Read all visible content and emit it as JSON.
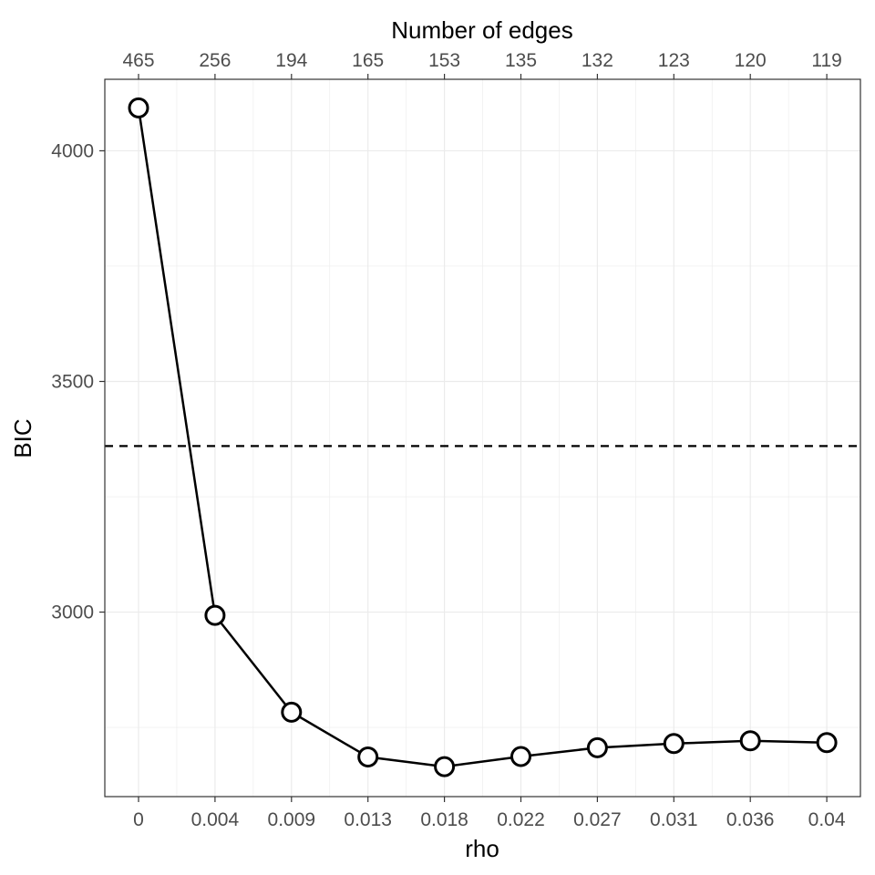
{
  "chart_data": {
    "type": "line",
    "title": "",
    "xlabel": "rho",
    "ylabel": "BIC",
    "x2label": "Number of edges",
    "categories": [
      "0",
      "0.004",
      "0.009",
      "0.013",
      "0.018",
      "0.022",
      "0.027",
      "0.031",
      "0.036",
      "0.04"
    ],
    "top_tick_labels": [
      "465",
      "256",
      "194",
      "165",
      "153",
      "135",
      "132",
      "123",
      "120",
      "119"
    ],
    "series": [
      {
        "values": [
          4093,
          2993,
          2783,
          2686,
          2665,
          2687,
          2706,
          2715,
          2721,
          2717
        ]
      }
    ],
    "y_ticks": [
      3000,
      3500,
      4000
    ],
    "ylim": [
      2600,
      4155
    ],
    "reference_line": {
      "y": 3360,
      "style": "dashed"
    },
    "grid": true,
    "legend": "none",
    "colors": {
      "line": "#000000",
      "marker_fill": "#ffffff",
      "grid": "#ebebeb",
      "panel_border": "#333333"
    }
  }
}
